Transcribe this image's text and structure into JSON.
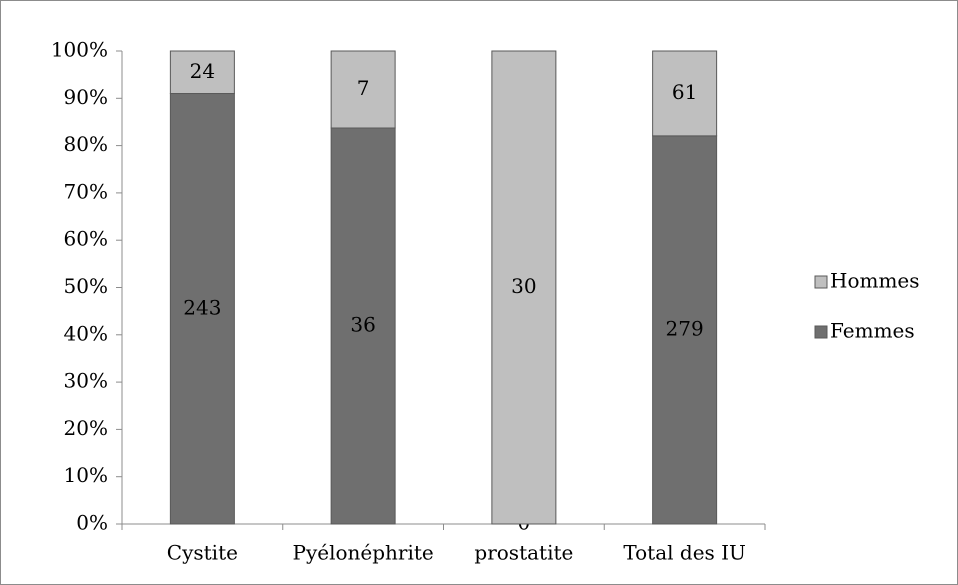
{
  "chart_data": {
    "type": "bar",
    "stacking": "percent",
    "categories": [
      "Cystite",
      "Pyélonéphrite",
      "prostatite",
      "Total des IU"
    ],
    "series": [
      {
        "name": "Femmes",
        "color": "#6f6f6f",
        "values": [
          243,
          36,
          0,
          279
        ]
      },
      {
        "name": "Hommes",
        "color": "#bfbfbf",
        "values": [
          24,
          7,
          30,
          61
        ]
      }
    ],
    "ylim": [
      0,
      100
    ],
    "yticks": [
      {
        "value": 0,
        "label": "0%"
      },
      {
        "value": 10,
        "label": "10%"
      },
      {
        "value": 20,
        "label": "20%"
      },
      {
        "value": 30,
        "label": "30%"
      },
      {
        "value": 40,
        "label": "40%"
      },
      {
        "value": 50,
        "label": "50%"
      },
      {
        "value": 60,
        "label": "60%"
      },
      {
        "value": 70,
        "label": "70%"
      },
      {
        "value": 80,
        "label": "80%"
      },
      {
        "value": 90,
        "label": "90%"
      },
      {
        "value": 100,
        "label": "100%"
      }
    ],
    "legend": "right"
  }
}
